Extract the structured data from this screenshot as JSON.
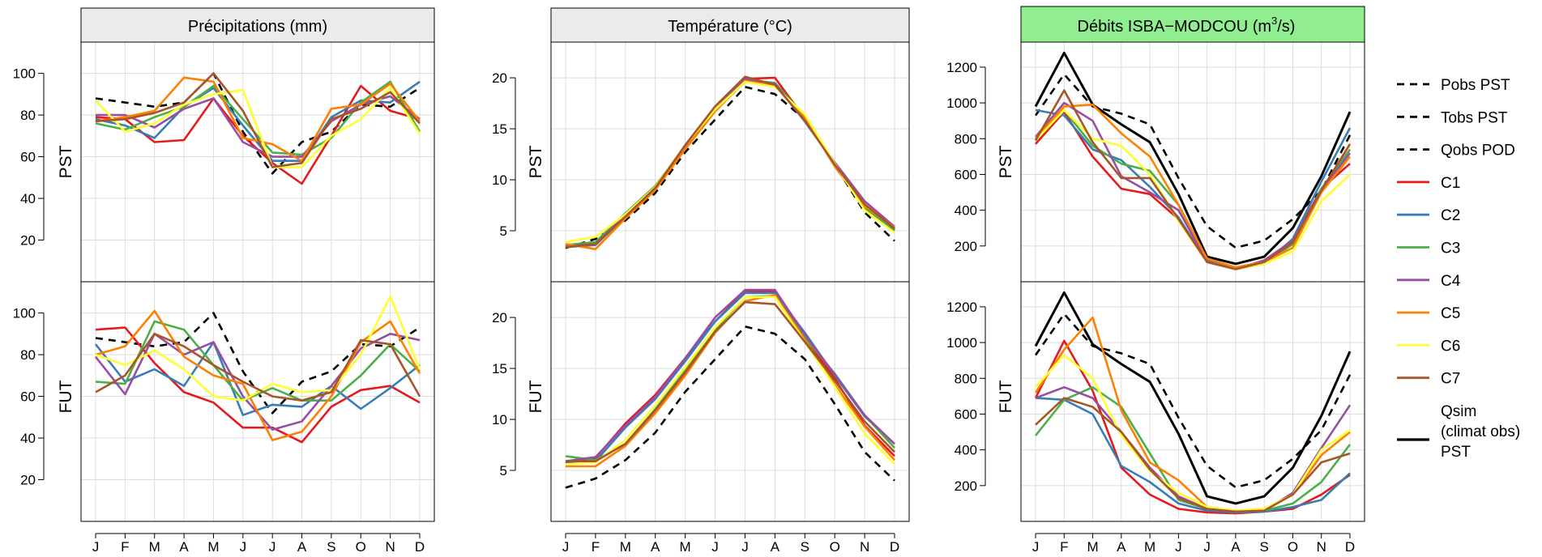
{
  "months": [
    "J",
    "F",
    "M",
    "A",
    "M",
    "J",
    "J",
    "A",
    "S",
    "O",
    "N",
    "D"
  ],
  "row_labels": [
    "PST",
    "FUT"
  ],
  "panel_titles": [
    "Précipitations (mm)",
    "Température (°C)",
    "Débits ISBA−MODCOU (m",
    "3",
    "/s)"
  ],
  "colors": {
    "C1": "#e41a1c",
    "C2": "#377eb8",
    "C3": "#4daf4a",
    "C4": "#984ea3",
    "C5": "#ff7f00",
    "C6": "#ffff33",
    "C7": "#a65628",
    "obs": "#000000",
    "header": "#ebebeb",
    "header_highlight": "#90ee90"
  },
  "legend": [
    {
      "label": "Pobs PST",
      "style": "dashed",
      "color": "#000000"
    },
    {
      "label": "Tobs PST",
      "style": "dashed",
      "color": "#000000"
    },
    {
      "label": "Qobs POD",
      "style": "dashed",
      "color": "#000000"
    },
    {
      "label": "C1",
      "style": "solid",
      "color": "#e41a1c"
    },
    {
      "label": "C2",
      "style": "solid",
      "color": "#377eb8"
    },
    {
      "label": "C3",
      "style": "solid",
      "color": "#4daf4a"
    },
    {
      "label": "C4",
      "style": "solid",
      "color": "#984ea3"
    },
    {
      "label": "C5",
      "style": "solid",
      "color": "#ff7f00"
    },
    {
      "label": "C6",
      "style": "solid",
      "color": "#ffff33"
    },
    {
      "label": "C7",
      "style": "solid",
      "color": "#a65628"
    },
    {
      "label": "Qsim",
      "label2": "(climat obs)",
      "label3": "PST",
      "style": "solid-thick",
      "color": "#000000"
    }
  ],
  "chart_data": [
    {
      "type": "line",
      "title": "Précipitations (mm)",
      "row": "PST",
      "ylim": [
        0,
        115
      ],
      "yticks": [
        20,
        40,
        60,
        80,
        100
      ],
      "categories": [
        "J",
        "F",
        "M",
        "A",
        "M",
        "J",
        "J",
        "A",
        "S",
        "O",
        "N",
        "D"
      ],
      "series": [
        {
          "name": "Pobs PST",
          "style": "dashed",
          "values": [
            88,
            86,
            84,
            86,
            100,
            72,
            52,
            67,
            72,
            85,
            84,
            93
          ]
        },
        {
          "name": "C1",
          "values": [
            79,
            78,
            67,
            68,
            88,
            70,
            57,
            47,
            70,
            94,
            82,
            78
          ]
        },
        {
          "name": "C2",
          "values": [
            78,
            75,
            69,
            84,
            93,
            75,
            58,
            58,
            79,
            87,
            86,
            96
          ]
        },
        {
          "name": "C3",
          "values": [
            76,
            73,
            79,
            84,
            94,
            78,
            62,
            61,
            69,
            86,
            96,
            72
          ]
        },
        {
          "name": "C4",
          "values": [
            80,
            80,
            74,
            83,
            88,
            67,
            60,
            60,
            77,
            85,
            89,
            78
          ]
        },
        {
          "name": "C5",
          "values": [
            77,
            79,
            82,
            98,
            96,
            69,
            66,
            58,
            83,
            85,
            95,
            77
          ]
        },
        {
          "name": "C6",
          "values": [
            87,
            72,
            76,
            85,
            90,
            92,
            55,
            55,
            70,
            78,
            93,
            71
          ]
        },
        {
          "name": "C7",
          "values": [
            77,
            78,
            81,
            86,
            100,
            82,
            55,
            57,
            78,
            83,
            91,
            76
          ]
        }
      ]
    },
    {
      "type": "line",
      "title": "Température (°C)",
      "row": "PST",
      "ylim": [
        0,
        23.5
      ],
      "yticks": [
        5,
        10,
        15,
        20
      ],
      "categories": [
        "J",
        "F",
        "M",
        "A",
        "M",
        "J",
        "J",
        "A",
        "S",
        "O",
        "N",
        "D"
      ],
      "series": [
        {
          "name": "Tobs PST",
          "style": "dashed",
          "values": [
            3.3,
            4.2,
            6.0,
            8.7,
            12.7,
            15.9,
            19.1,
            18.4,
            15.9,
            11.5,
            6.8,
            4.0
          ]
        },
        {
          "name": "C1",
          "values": [
            3.5,
            3.8,
            6.5,
            9.1,
            13.2,
            16.8,
            19.9,
            20.0,
            16.0,
            11.4,
            7.3,
            5.1
          ]
        },
        {
          "name": "C2",
          "values": [
            3.4,
            3.6,
            6.4,
            9.2,
            13.1,
            16.8,
            19.6,
            19.4,
            15.7,
            11.6,
            7.5,
            5.2
          ]
        },
        {
          "name": "C3",
          "values": [
            3.6,
            3.9,
            6.7,
            9.4,
            13.3,
            16.9,
            19.8,
            19.5,
            16.2,
            11.5,
            7.2,
            5.0
          ]
        },
        {
          "name": "C4",
          "values": [
            3.5,
            3.7,
            6.5,
            9.3,
            13.2,
            17.0,
            19.9,
            19.4,
            15.9,
            11.7,
            7.9,
            5.4
          ]
        },
        {
          "name": "C5",
          "values": [
            3.7,
            3.2,
            6.2,
            9.0,
            13.0,
            16.7,
            19.7,
            19.2,
            16.1,
            11.3,
            7.4,
            5.3
          ]
        },
        {
          "name": "C6",
          "values": [
            3.9,
            4.4,
            6.6,
            9.3,
            13.4,
            16.9,
            19.6,
            19.1,
            16.4,
            11.6,
            7.0,
            4.8
          ]
        },
        {
          "name": "C7",
          "values": [
            3.4,
            3.7,
            6.4,
            9.2,
            13.4,
            17.2,
            20.1,
            19.3,
            15.8,
            11.5,
            7.6,
            5.2
          ]
        }
      ]
    },
    {
      "type": "line",
      "title": "Débits ISBA−MODCOU (m3/s)",
      "row": "PST",
      "ylim": [
        0,
        1340
      ],
      "yticks": [
        200,
        400,
        600,
        800,
        1000,
        1200
      ],
      "categories": [
        "J",
        "F",
        "M",
        "A",
        "M",
        "J",
        "J",
        "A",
        "S",
        "O",
        "N",
        "D"
      ],
      "series": [
        {
          "name": "Qobs POD",
          "style": "dashed",
          "values": [
            930,
            1160,
            980,
            940,
            880,
            580,
            310,
            190,
            230,
            350,
            510,
            820
          ]
        },
        {
          "name": "Qsim (climat obs) PST",
          "style": "thick",
          "values": [
            980,
            1280,
            990,
            880,
            780,
            490,
            140,
            100,
            140,
            300,
            590,
            950
          ]
        },
        {
          "name": "C1",
          "values": [
            770,
            950,
            700,
            520,
            490,
            350,
            120,
            80,
            110,
            230,
            520,
            660
          ]
        },
        {
          "name": "C2",
          "values": [
            960,
            930,
            740,
            680,
            530,
            360,
            110,
            70,
            100,
            240,
            560,
            860
          ]
        },
        {
          "name": "C3",
          "values": [
            790,
            960,
            760,
            660,
            620,
            430,
            120,
            75,
            105,
            210,
            520,
            740
          ]
        },
        {
          "name": "C4",
          "values": [
            810,
            1000,
            900,
            590,
            500,
            400,
            115,
            70,
            120,
            230,
            510,
            720
          ]
        },
        {
          "name": "C5",
          "values": [
            800,
            980,
            990,
            830,
            700,
            430,
            130,
            80,
            110,
            190,
            500,
            700
          ]
        },
        {
          "name": "C6",
          "values": [
            790,
            960,
            800,
            760,
            600,
            340,
            110,
            70,
            100,
            170,
            450,
            600
          ]
        },
        {
          "name": "C7",
          "values": [
            790,
            1070,
            780,
            580,
            580,
            350,
            110,
            70,
            110,
            220,
            510,
            770
          ]
        }
      ]
    },
    {
      "type": "line",
      "title": "Précipitations (mm)",
      "row": "FUT",
      "ylim": [
        0,
        115
      ],
      "yticks": [
        20,
        40,
        60,
        80,
        100
      ],
      "categories": [
        "J",
        "F",
        "M",
        "A",
        "M",
        "J",
        "J",
        "A",
        "S",
        "O",
        "N",
        "D"
      ],
      "series": [
        {
          "name": "Pobs PST",
          "style": "dashed",
          "values": [
            88,
            86,
            84,
            86,
            100,
            72,
            52,
            67,
            72,
            85,
            84,
            93
          ]
        },
        {
          "name": "C1",
          "values": [
            92,
            93,
            76,
            62,
            57,
            45,
            45,
            38,
            55,
            63,
            65,
            57
          ]
        },
        {
          "name": "C2",
          "values": [
            85,
            67,
            73,
            65,
            86,
            51,
            56,
            55,
            65,
            54,
            64,
            75
          ]
        },
        {
          "name": "C3",
          "values": [
            67,
            66,
            96,
            92,
            75,
            58,
            64,
            58,
            58,
            70,
            85,
            72
          ]
        },
        {
          "name": "C4",
          "values": [
            79,
            61,
            90,
            80,
            86,
            60,
            44,
            48,
            65,
            83,
            90,
            87
          ]
        },
        {
          "name": "C5",
          "values": [
            80,
            84,
            101,
            79,
            70,
            66,
            39,
            43,
            60,
            86,
            96,
            71
          ]
        },
        {
          "name": "C6",
          "values": [
            80,
            75,
            82,
            73,
            60,
            58,
            66,
            62,
            63,
            80,
            108,
            73
          ]
        },
        {
          "name": "C7",
          "values": [
            62,
            70,
            90,
            84,
            75,
            67,
            60,
            58,
            62,
            87,
            85,
            60
          ]
        }
      ]
    },
    {
      "type": "line",
      "title": "Température (°C)",
      "row": "FUT",
      "ylim": [
        0,
        23.5
      ],
      "yticks": [
        5,
        10,
        15,
        20
      ],
      "categories": [
        "J",
        "F",
        "M",
        "A",
        "M",
        "J",
        "J",
        "A",
        "S",
        "O",
        "N",
        "D"
      ],
      "series": [
        {
          "name": "Tobs PST",
          "style": "dashed",
          "values": [
            3.3,
            4.2,
            6.0,
            8.7,
            12.7,
            15.9,
            19.1,
            18.4,
            15.9,
            11.5,
            6.8,
            4.0
          ]
        },
        {
          "name": "C1",
          "values": [
            5.7,
            6.2,
            9.6,
            12.4,
            16.0,
            19.6,
            22.6,
            22.5,
            18.0,
            14.0,
            9.4,
            6.4
          ]
        },
        {
          "name": "C2",
          "values": [
            5.7,
            5.9,
            9.2,
            12.0,
            15.7,
            19.6,
            22.4,
            22.4,
            18.5,
            14.3,
            10.3,
            7.6
          ]
        },
        {
          "name": "C3",
          "values": [
            6.4,
            6.0,
            7.6,
            11.0,
            14.8,
            18.8,
            22.0,
            22.1,
            18.0,
            14.5,
            10.4,
            7.2
          ]
        },
        {
          "name": "C4",
          "values": [
            5.9,
            6.3,
            9.4,
            12.2,
            16.0,
            20.0,
            22.7,
            22.7,
            18.3,
            14.4,
            10.4,
            7.6
          ]
        },
        {
          "name": "C5",
          "values": [
            5.4,
            5.4,
            7.4,
            10.6,
            14.3,
            18.5,
            21.6,
            22.2,
            17.8,
            13.4,
            9.3,
            6.0
          ]
        },
        {
          "name": "C6",
          "values": [
            5.6,
            5.8,
            8.0,
            11.4,
            15.1,
            19.0,
            22.0,
            22.0,
            17.6,
            13.2,
            8.6,
            5.6
          ]
        },
        {
          "name": "C7",
          "values": [
            5.9,
            5.9,
            7.6,
            10.9,
            14.6,
            18.6,
            21.5,
            21.3,
            17.6,
            13.8,
            9.8,
            6.8
          ]
        }
      ]
    },
    {
      "type": "line",
      "title": "Débits ISBA−MODCOU (m3/s)",
      "row": "FUT",
      "ylim": [
        0,
        1340
      ],
      "yticks": [
        200,
        400,
        600,
        800,
        1000,
        1200
      ],
      "categories": [
        "J",
        "F",
        "M",
        "A",
        "M",
        "J",
        "J",
        "A",
        "S",
        "O",
        "N",
        "D"
      ],
      "series": [
        {
          "name": "Qobs POD",
          "style": "dashed",
          "values": [
            930,
            1160,
            980,
            940,
            880,
            580,
            310,
            190,
            230,
            350,
            510,
            820
          ]
        },
        {
          "name": "Qsim (climat obs) PST",
          "style": "thick",
          "values": [
            980,
            1280,
            990,
            880,
            780,
            490,
            140,
            100,
            140,
            300,
            590,
            950
          ]
        },
        {
          "name": "C1",
          "values": [
            690,
            1010,
            730,
            300,
            150,
            70,
            50,
            45,
            55,
            70,
            150,
            260
          ]
        },
        {
          "name": "C2",
          "values": [
            690,
            680,
            600,
            310,
            220,
            100,
            60,
            50,
            55,
            80,
            120,
            270
          ]
        },
        {
          "name": "C3",
          "values": [
            480,
            680,
            750,
            640,
            380,
            120,
            70,
            60,
            60,
            100,
            220,
            430
          ]
        },
        {
          "name": "C4",
          "values": [
            690,
            750,
            690,
            500,
            300,
            140,
            70,
            55,
            60,
            160,
            410,
            650
          ]
        },
        {
          "name": "C5",
          "values": [
            720,
            960,
            1140,
            620,
            330,
            230,
            80,
            60,
            70,
            150,
            370,
            500
          ]
        },
        {
          "name": "C6",
          "values": [
            750,
            930,
            800,
            480,
            280,
            160,
            80,
            60,
            70,
            150,
            400,
            510
          ]
        },
        {
          "name": "C7",
          "values": [
            540,
            690,
            640,
            500,
            290,
            130,
            70,
            55,
            60,
            150,
            330,
            380
          ]
        }
      ]
    }
  ]
}
